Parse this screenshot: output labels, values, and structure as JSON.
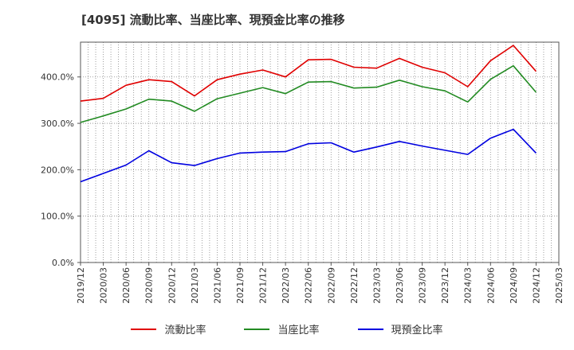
{
  "chart_data": {
    "type": "line",
    "title": "[4095]  流動比率、当座比率、現預金比率の推移",
    "xlabel": "",
    "ylabel": "",
    "ylim": [
      0,
      475
    ],
    "yticks": [
      0,
      100,
      200,
      300,
      400
    ],
    "ytick_labels": [
      "0.0%",
      "100.0%",
      "200.0%",
      "300.0%",
      "400.0%"
    ],
    "categories": [
      "2019/12",
      "2020/03",
      "2020/06",
      "2020/09",
      "2020/12",
      "2021/03",
      "2021/06",
      "2021/09",
      "2021/12",
      "2022/03",
      "2022/06",
      "2022/09",
      "2022/12",
      "2023/03",
      "2023/06",
      "2023/09",
      "2023/12",
      "2024/03",
      "2024/06",
      "2024/09",
      "2024/12",
      "2025/03"
    ],
    "series": [
      {
        "name": "流動比率",
        "color": "#e00000",
        "values": [
          348,
          354,
          382,
          394,
          390,
          359,
          394,
          406,
          415,
          400,
          437,
          438,
          421,
          419,
          440,
          421,
          409,
          379,
          435,
          468,
          412,
          null
        ]
      },
      {
        "name": "当座比率",
        "color": "#228b22",
        "values": [
          302,
          316,
          331,
          352,
          348,
          326,
          353,
          365,
          377,
          364,
          389,
          390,
          376,
          378,
          393,
          379,
          370,
          346,
          395,
          424,
          367,
          null
        ]
      },
      {
        "name": "現預金比率",
        "color": "#0000e0",
        "values": [
          174,
          192,
          210,
          241,
          215,
          209,
          224,
          236,
          238,
          239,
          256,
          258,
          238,
          249,
          261,
          251,
          242,
          233,
          268,
          287,
          236,
          null
        ]
      }
    ],
    "grid": true,
    "legend_position": "bottom"
  }
}
